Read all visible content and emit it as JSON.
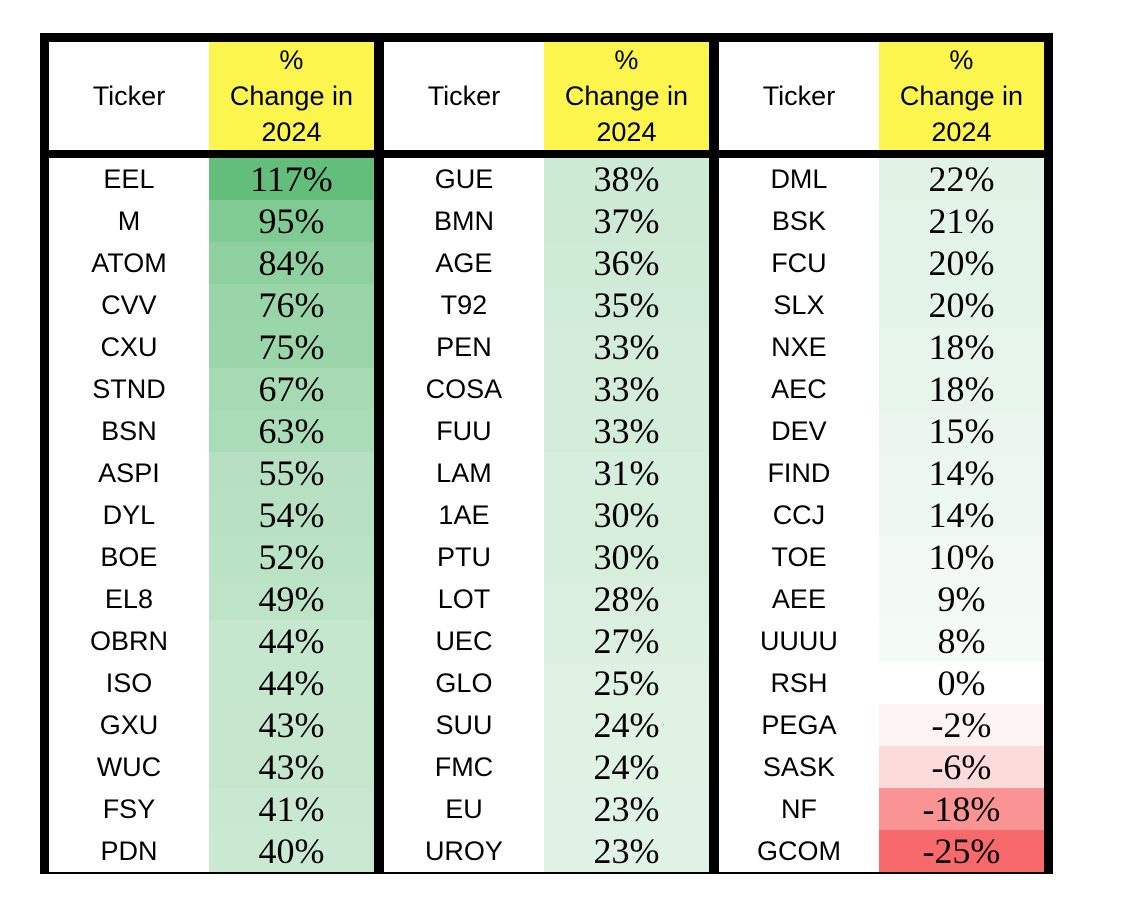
{
  "chart_data": {
    "type": "table",
    "title": "Ticker % change in 2024 heat-mapped table",
    "layout": {
      "group_count": 3,
      "rows_per_group": 17,
      "border_color": "#000000",
      "background_color": "#FFFFFF"
    },
    "header": {
      "ticker_label": "Ticker",
      "change_label": "% Change in 2024",
      "change_label_lines": [
        "%",
        "Change in",
        "2024"
      ],
      "change_header_bg": "#FBF54E",
      "ticker_header_bg": "#FFFFFF"
    },
    "color_scale": {
      "description": "3-color scale on % change: min red, 0 white, max green",
      "min": -25,
      "mid": 0,
      "max": 117,
      "min_color": "#F8696B",
      "mid_color": "#FFFFFF",
      "max_color": "#63BE7B"
    },
    "tables": [
      {
        "rows": [
          {
            "ticker": "EEL",
            "change": "117%",
            "value": 117
          },
          {
            "ticker": "M",
            "change": "95%",
            "value": 95
          },
          {
            "ticker": "ATOM",
            "change": "84%",
            "value": 84
          },
          {
            "ticker": "CVV",
            "change": "76%",
            "value": 76
          },
          {
            "ticker": "CXU",
            "change": "75%",
            "value": 75
          },
          {
            "ticker": "STND",
            "change": "67%",
            "value": 67
          },
          {
            "ticker": "BSN",
            "change": "63%",
            "value": 63
          },
          {
            "ticker": "ASPI",
            "change": "55%",
            "value": 55
          },
          {
            "ticker": "DYL",
            "change": "54%",
            "value": 54
          },
          {
            "ticker": "BOE",
            "change": "52%",
            "value": 52
          },
          {
            "ticker": "EL8",
            "change": "49%",
            "value": 49
          },
          {
            "ticker": "OBRN",
            "change": "44%",
            "value": 44
          },
          {
            "ticker": "ISO",
            "change": "44%",
            "value": 44
          },
          {
            "ticker": "GXU",
            "change": "43%",
            "value": 43
          },
          {
            "ticker": "WUC",
            "change": "43%",
            "value": 43
          },
          {
            "ticker": "FSY",
            "change": "41%",
            "value": 41
          },
          {
            "ticker": "PDN",
            "change": "40%",
            "value": 40
          }
        ]
      },
      {
        "rows": [
          {
            "ticker": "GUE",
            "change": "38%",
            "value": 38
          },
          {
            "ticker": "BMN",
            "change": "37%",
            "value": 37
          },
          {
            "ticker": "AGE",
            "change": "36%",
            "value": 36
          },
          {
            "ticker": "T92",
            "change": "35%",
            "value": 35
          },
          {
            "ticker": "PEN",
            "change": "33%",
            "value": 33
          },
          {
            "ticker": "COSA",
            "change": "33%",
            "value": 33
          },
          {
            "ticker": "FUU",
            "change": "33%",
            "value": 33
          },
          {
            "ticker": "LAM",
            "change": "31%",
            "value": 31
          },
          {
            "ticker": "1AE",
            "change": "30%",
            "value": 30
          },
          {
            "ticker": "PTU",
            "change": "30%",
            "value": 30
          },
          {
            "ticker": "LOT",
            "change": "28%",
            "value": 28
          },
          {
            "ticker": "UEC",
            "change": "27%",
            "value": 27
          },
          {
            "ticker": "GLO",
            "change": "25%",
            "value": 25
          },
          {
            "ticker": "SUU",
            "change": "24%",
            "value": 24
          },
          {
            "ticker": "FMC",
            "change": "24%",
            "value": 24
          },
          {
            "ticker": "EU",
            "change": "23%",
            "value": 23
          },
          {
            "ticker": "UROY",
            "change": "23%",
            "value": 23
          }
        ]
      },
      {
        "rows": [
          {
            "ticker": "DML",
            "change": "22%",
            "value": 22
          },
          {
            "ticker": "BSK",
            "change": "21%",
            "value": 21
          },
          {
            "ticker": "FCU",
            "change": "20%",
            "value": 20
          },
          {
            "ticker": "SLX",
            "change": "20%",
            "value": 20
          },
          {
            "ticker": "NXE",
            "change": "18%",
            "value": 18
          },
          {
            "ticker": "AEC",
            "change": "18%",
            "value": 18
          },
          {
            "ticker": "DEV",
            "change": "15%",
            "value": 15
          },
          {
            "ticker": "FIND",
            "change": "14%",
            "value": 14
          },
          {
            "ticker": "CCJ",
            "change": "14%",
            "value": 14
          },
          {
            "ticker": "TOE",
            "change": "10%",
            "value": 10
          },
          {
            "ticker": "AEE",
            "change": "9%",
            "value": 9
          },
          {
            "ticker": "UUUU",
            "change": "8%",
            "value": 8
          },
          {
            "ticker": "RSH",
            "change": "0%",
            "value": 0
          },
          {
            "ticker": "PEGA",
            "change": "-2%",
            "value": -2
          },
          {
            "ticker": "SASK",
            "change": "-6%",
            "value": -6
          },
          {
            "ticker": "NF",
            "change": "-18%",
            "value": -18
          },
          {
            "ticker": "GCOM",
            "change": "-25%",
            "value": -25
          }
        ]
      }
    ]
  }
}
